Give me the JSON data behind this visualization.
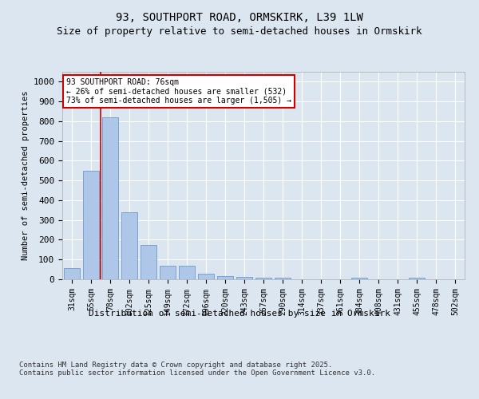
{
  "title_line1": "93, SOUTHPORT ROAD, ORMSKIRK, L39 1LW",
  "title_line2": "Size of property relative to semi-detached houses in Ormskirk",
  "xlabel": "Distribution of semi-detached houses by size in Ormskirk",
  "ylabel": "Number of semi-detached properties",
  "categories": [
    "31sqm",
    "55sqm",
    "78sqm",
    "102sqm",
    "125sqm",
    "149sqm",
    "172sqm",
    "196sqm",
    "220sqm",
    "243sqm",
    "267sqm",
    "290sqm",
    "314sqm",
    "337sqm",
    "361sqm",
    "384sqm",
    "408sqm",
    "431sqm",
    "455sqm",
    "478sqm",
    "502sqm"
  ],
  "values": [
    55,
    550,
    820,
    340,
    175,
    70,
    70,
    28,
    18,
    14,
    10,
    8,
    0,
    0,
    0,
    8,
    0,
    0,
    10,
    0,
    0
  ],
  "bar_color": "#aec6e8",
  "bar_edge_color": "#5a8fc0",
  "highlight_color": "#cc0000",
  "annotation_text": "93 SOUTHPORT ROAD: 76sqm\n← 26% of semi-detached houses are smaller (532)\n73% of semi-detached houses are larger (1,505) →",
  "annotation_box_color": "#ffffff",
  "annotation_box_edge_color": "#cc0000",
  "ylim": [
    0,
    1050
  ],
  "yticks": [
    0,
    100,
    200,
    300,
    400,
    500,
    600,
    700,
    800,
    900,
    1000
  ],
  "footnote": "Contains HM Land Registry data © Crown copyright and database right 2025.\nContains public sector information licensed under the Open Government Licence v3.0.",
  "bg_color": "#dce6f1",
  "plot_bg_color": "#dce6f1",
  "grid_color": "#ffffff",
  "title_fontsize": 10,
  "subtitle_fontsize": 9,
  "footnote_fontsize": 6.5
}
